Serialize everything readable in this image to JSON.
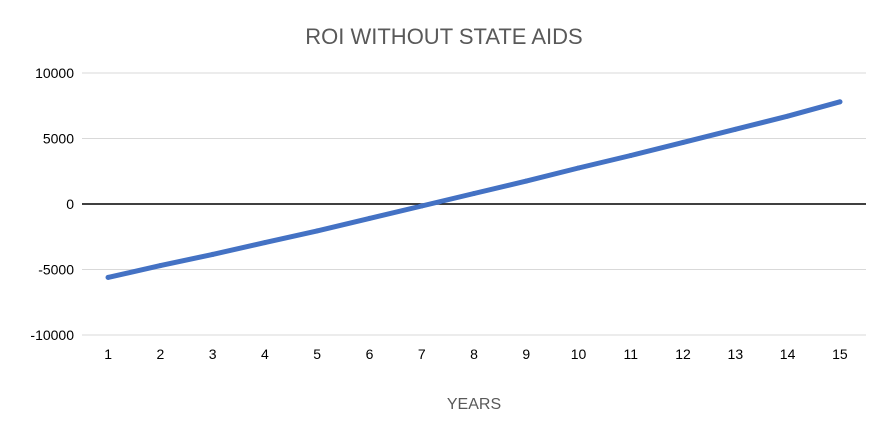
{
  "chart_data": {
    "type": "line",
    "title": "ROI WITHOUT STATE AIDS",
    "xlabel": "YEARS",
    "ylabel": "",
    "x": [
      1,
      2,
      3,
      4,
      5,
      6,
      7,
      8,
      9,
      10,
      11,
      12,
      13,
      14,
      15
    ],
    "series": [
      {
        "name": "ROI",
        "values": [
          -5600,
          -4700,
          -3850,
          -2950,
          -2050,
          -1100,
          -150,
          800,
          1750,
          2750,
          3700,
          4700,
          5700,
          6700,
          7800
        ]
      }
    ],
    "ylim": [
      -10000,
      10000
    ],
    "yticks": [
      10000,
      5000,
      0,
      -5000,
      -10000
    ],
    "grid": true,
    "legend": "none",
    "colors": {
      "line": "#4472c4",
      "grid": "#d9d9d9",
      "zero_line": "#000000"
    }
  }
}
